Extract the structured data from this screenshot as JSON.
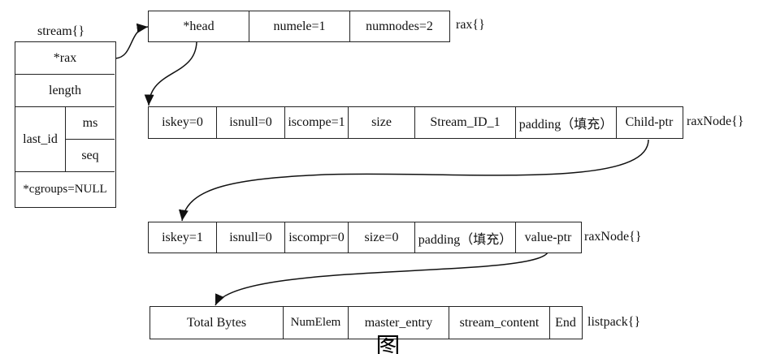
{
  "stream": {
    "title": "stream{}",
    "rax": "*rax",
    "length": "length",
    "last_id": "last_id",
    "ms": "ms",
    "seq": "seq",
    "cgroups": "*cgroups=NULL"
  },
  "rax": {
    "cells": [
      "*head",
      "numele=1",
      "numnodes=2"
    ],
    "label": "rax{}"
  },
  "raxnode1": {
    "cells": [
      "iskey=0",
      "isnull=0",
      "iscompe=1",
      "size",
      "Stream_ID_1",
      "padding（填充）",
      "Child-ptr"
    ],
    "label": "raxNode{}"
  },
  "raxnode2": {
    "cells": [
      "iskey=1",
      "isnull=0",
      "iscompr=0",
      "size=0",
      "padding（填充）",
      "value-ptr"
    ],
    "label": "raxNode{}"
  },
  "listpack": {
    "cells": [
      "Total Bytes",
      "NumElem",
      "master_entry",
      "stream_content",
      "End"
    ],
    "label": "listpack{}"
  },
  "caption": "图"
}
